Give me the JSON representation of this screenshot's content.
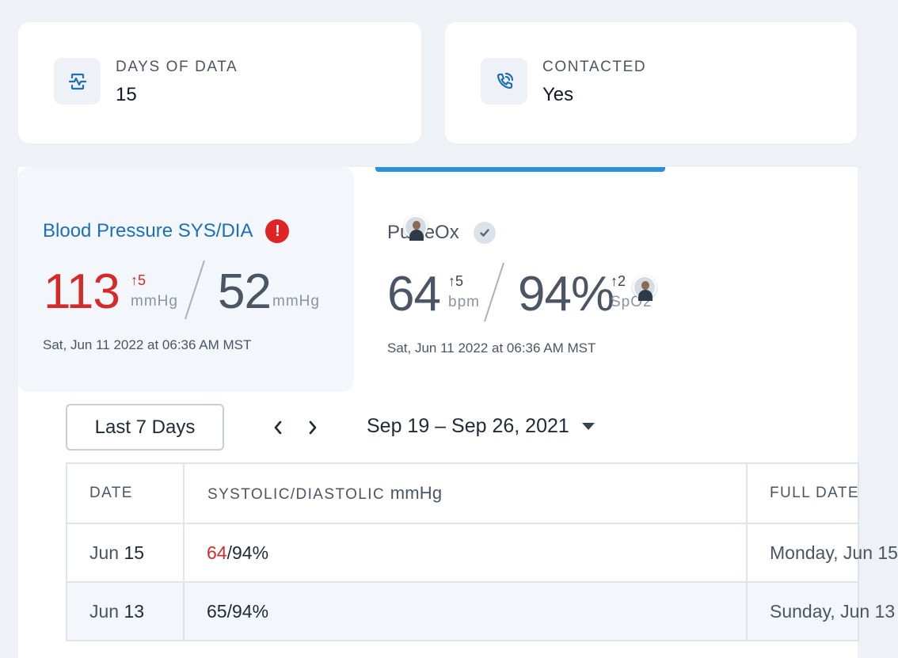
{
  "stats": [
    {
      "label": "DAYS OF DATA",
      "value": "15",
      "icon": "heart-monitor-icon"
    },
    {
      "label": "CONTACTED",
      "value": "Yes",
      "icon": "phone-call-icon"
    }
  ],
  "vitals": {
    "blood_pressure": {
      "title": "Blood Pressure SYS/DIA",
      "status_icon": "alert-icon",
      "primary_value": "113",
      "primary_delta": "↑5",
      "primary_unit": "mmHg",
      "secondary_value": "52",
      "secondary_unit": "mmHg",
      "timestamp": "Sat, Jun 11 2022 at 06:36 AM MST",
      "colors": {
        "title": "#1d6fb8",
        "alert": "#e02424"
      }
    },
    "pulse_ox": {
      "title": "PulseOx",
      "status_icon": "check-icon",
      "primary_value": "64",
      "primary_delta": "↑5",
      "primary_unit": "bpm",
      "secondary_value": "94%",
      "secondary_delta": "↑2",
      "secondary_unit": "SpO2",
      "timestamp": "Sat, Jun 11 2022 at 06:36 AM MST"
    }
  },
  "filters": {
    "range_button": "Last 7 Days",
    "date_range": "Sep 19 – Sep 26, 2021"
  },
  "table": {
    "headers": {
      "date": "DATE",
      "reading": "SYSTOLIC/DIASTOLIC",
      "reading_unit": "mmHg",
      "full_date": "FULL DATE"
    },
    "rows": [
      {
        "month": "Jun",
        "day": "15",
        "reading_high": "64",
        "reading_rest": "/94%",
        "full_date": "Monday, Jun 15"
      },
      {
        "month": "Jun",
        "day": "13",
        "reading_high": "65",
        "reading_rest": "/94%",
        "full_date": "Sunday, Jun 13"
      }
    ]
  },
  "colors": {
    "accent": "#2b8fe0",
    "alert_value": "#d42a2a"
  }
}
